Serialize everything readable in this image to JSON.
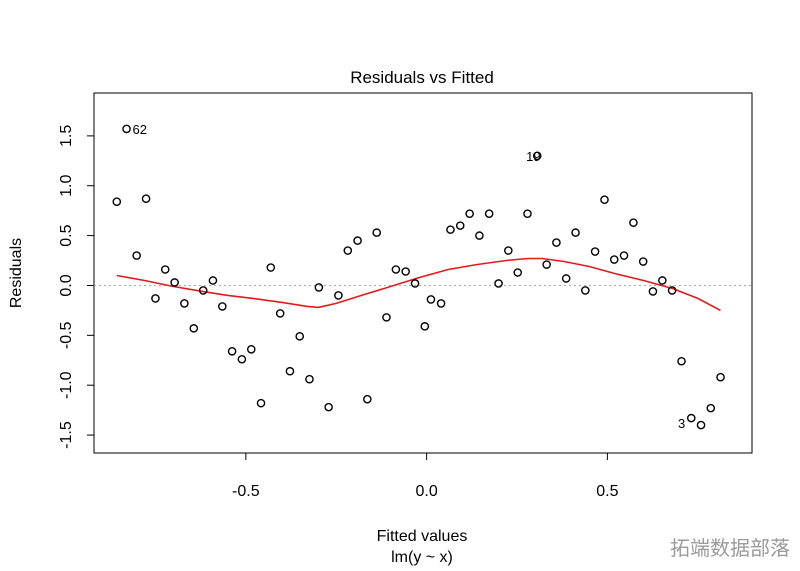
{
  "chart_data": {
    "type": "scatter",
    "title": "Residuals vs Fitted",
    "xlabel": "Fitted values",
    "xlabel_sub": "lm(y ~ x)",
    "ylabel": "Residuals",
    "xlim": [
      -0.92,
      0.9
    ],
    "ylim": [
      -1.68,
      1.93
    ],
    "xticks": [
      -0.5,
      0.0,
      0.5
    ],
    "xtick_labels": [
      "-0.5",
      "0.0",
      "0.5"
    ],
    "yticks": [
      -1.5,
      -1.0,
      -0.5,
      0.0,
      0.5,
      1.0,
      1.5
    ],
    "ytick_labels": [
      "-1.5",
      "-1.0",
      "-0.5",
      "0.0",
      "0.5",
      "1.0",
      "1.5"
    ],
    "grid": false,
    "reference_line": {
      "y": 0,
      "style": "dotted",
      "color": "#aaaaaa"
    },
    "points": {
      "x": [
        -0.857,
        -0.83,
        -0.802,
        -0.776,
        -0.75,
        -0.723,
        -0.697,
        -0.67,
        -0.644,
        -0.618,
        -0.591,
        -0.565,
        -0.538,
        -0.511,
        -0.485,
        -0.458,
        -0.431,
        -0.405,
        -0.378,
        -0.351,
        -0.324,
        -0.298,
        -0.271,
        -0.244,
        -0.218,
        -0.191,
        -0.164,
        -0.138,
        -0.111,
        -0.085,
        -0.058,
        -0.032,
        -0.005,
        0.012,
        0.04,
        0.066,
        0.093,
        0.119,
        0.146,
        0.173,
        0.199,
        0.226,
        0.252,
        0.279,
        0.306,
        0.332,
        0.359,
        0.386,
        0.412,
        0.439,
        0.466,
        0.492,
        0.519,
        0.546,
        0.572,
        0.599,
        0.626,
        0.652,
        0.679,
        0.705,
        0.732,
        0.759,
        0.786,
        0.813
      ],
      "y": [
        0.84,
        1.57,
        0.3,
        0.87,
        -0.13,
        0.16,
        0.03,
        -0.18,
        -0.43,
        -0.05,
        0.05,
        -0.21,
        -0.66,
        -0.74,
        -0.64,
        -1.18,
        0.18,
        -0.28,
        -0.86,
        -0.51,
        -0.94,
        -0.02,
        -1.22,
        -0.1,
        0.35,
        0.45,
        -1.14,
        0.53,
        -0.32,
        0.16,
        0.14,
        0.02,
        -0.41,
        -0.14,
        -0.18,
        0.56,
        0.6,
        0.72,
        0.5,
        0.72,
        0.02,
        0.35,
        0.13,
        0.72,
        1.3,
        0.21,
        0.43,
        0.07,
        0.53,
        -0.05,
        0.34,
        0.86,
        0.26,
        0.3,
        0.63,
        0.24,
        -0.06,
        0.05,
        -0.05,
        -0.76,
        -1.33,
        -1.4,
        -1.23,
        -0.92
      ]
    },
    "smooth": {
      "color": "#e31a1c",
      "x": [
        -0.857,
        -0.78,
        -0.7,
        -0.62,
        -0.55,
        -0.48,
        -0.4,
        -0.33,
        -0.3,
        -0.25,
        -0.18,
        -0.1,
        -0.02,
        0.06,
        0.14,
        0.22,
        0.28,
        0.32,
        0.38,
        0.45,
        0.52,
        0.6,
        0.68,
        0.75,
        0.813
      ],
      "y": [
        0.1,
        0.05,
        -0.01,
        -0.06,
        -0.1,
        -0.13,
        -0.17,
        -0.21,
        -0.22,
        -0.18,
        -0.1,
        -0.01,
        0.08,
        0.16,
        0.21,
        0.25,
        0.27,
        0.27,
        0.24,
        0.19,
        0.12,
        0.05,
        -0.03,
        -0.13,
        -0.25
      ]
    },
    "annotations": [
      {
        "label": "62",
        "x": -0.83,
        "y": 1.57,
        "side": "right"
      },
      {
        "label": "19",
        "x": 0.332,
        "y": 1.3,
        "side": "left"
      },
      {
        "label": "3",
        "x": 0.732,
        "y": -1.38,
        "side": "left"
      }
    ]
  },
  "watermark": "拓端数据部落"
}
